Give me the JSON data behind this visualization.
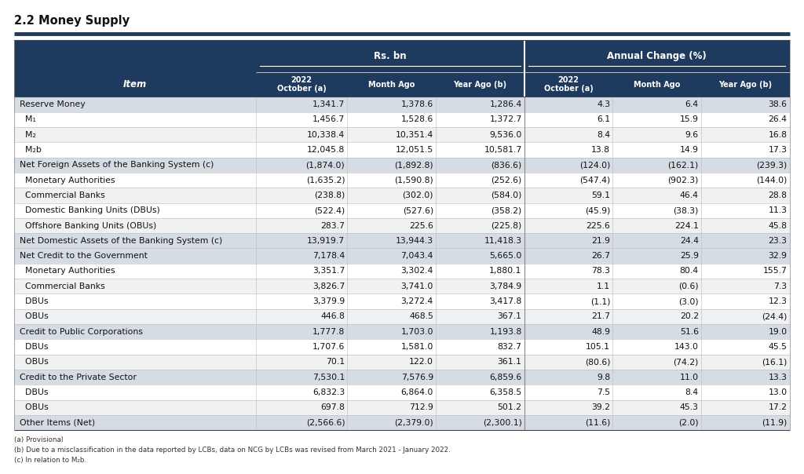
{
  "title": "2.2 Money Supply",
  "header_bg": "#1e3a5f",
  "header_text": "#ffffff",
  "row_bg_section": "#dde3ea",
  "row_bg_gray": "#e8ecf0",
  "row_bg_white": "#ffffff",
  "row_bg_light": "#f2f4f6",
  "col_groups": [
    "Rs. bn",
    "Annual Change (%)"
  ],
  "col_headers": [
    "2022\nOctober (a)",
    "Month Ago",
    "Year Ago (b)",
    "2022\nOctober (a)",
    "Month Ago",
    "Year Ago (b)"
  ],
  "item_col": "Item",
  "rows": [
    {
      "item": "Reserve Money",
      "type": "bold_section",
      "vals": [
        "1,341.7",
        "1,378.6",
        "1,286.4",
        "4.3",
        "6.4",
        "38.6"
      ]
    },
    {
      "item": "  M₁",
      "type": "sub",
      "vals": [
        "1,456.7",
        "1,528.6",
        "1,372.7",
        "6.1",
        "15.9",
        "26.4"
      ]
    },
    {
      "item": "  M₂",
      "type": "sub",
      "vals": [
        "10,338.4",
        "10,351.4",
        "9,536.0",
        "8.4",
        "9.6",
        "16.8"
      ]
    },
    {
      "item": "  M₂b",
      "type": "sub",
      "vals": [
        "12,045.8",
        "12,051.5",
        "10,581.7",
        "13.8",
        "14.9",
        "17.3"
      ]
    },
    {
      "item": "Net Foreign Assets of the Banking System (c)",
      "type": "bold_section",
      "vals": [
        "(1,874.0)",
        "(1,892.8)",
        "(836.6)",
        "(124.0)",
        "(162.1)",
        "(239.3)"
      ]
    },
    {
      "item": "  Monetary Authorities",
      "type": "sub",
      "vals": [
        "(1,635.2)",
        "(1,590.8)",
        "(252.6)",
        "(547.4)",
        "(902.3)",
        "(144.0)"
      ]
    },
    {
      "item": "  Commercial Banks",
      "type": "sub",
      "vals": [
        "(238.8)",
        "(302.0)",
        "(584.0)",
        "59.1",
        "46.4",
        "28.8"
      ]
    },
    {
      "item": "  Domestic Banking Units (DBUs)",
      "type": "sub",
      "vals": [
        "(522.4)",
        "(527.6)",
        "(358.2)",
        "(45.9)",
        "(38.3)",
        "11.3"
      ]
    },
    {
      "item": "  Offshore Banking Units (OBUs)",
      "type": "sub",
      "vals": [
        "283.7",
        "225.6",
        "(225.8)",
        "225.6",
        "224.1",
        "45.8"
      ]
    },
    {
      "item": "Net Domestic Assets of the Banking System (c)",
      "type": "bold_section",
      "vals": [
        "13,919.7",
        "13,944.3",
        "11,418.3",
        "21.9",
        "24.4",
        "23.3"
      ]
    },
    {
      "item": "Net Credit to the Government",
      "type": "bold_section",
      "vals": [
        "7,178.4",
        "7,043.4",
        "5,665.0",
        "26.7",
        "25.9",
        "32.9"
      ]
    },
    {
      "item": "  Monetary Authorities",
      "type": "sub",
      "vals": [
        "3,351.7",
        "3,302.4",
        "1,880.1",
        "78.3",
        "80.4",
        "155.7"
      ]
    },
    {
      "item": "  Commercial Banks",
      "type": "sub",
      "vals": [
        "3,826.7",
        "3,741.0",
        "3,784.9",
        "1.1",
        "(0.6)",
        "7.3"
      ]
    },
    {
      "item": "  DBUs",
      "type": "sub",
      "vals": [
        "3,379.9",
        "3,272.4",
        "3,417.8",
        "(1.1)",
        "(3.0)",
        "12.3"
      ]
    },
    {
      "item": "  OBUs",
      "type": "sub",
      "vals": [
        "446.8",
        "468.5",
        "367.1",
        "21.7",
        "20.2",
        "(24.4)"
      ]
    },
    {
      "item": "Credit to Public Corporations",
      "type": "bold_section",
      "vals": [
        "1,777.8",
        "1,703.0",
        "1,193.8",
        "48.9",
        "51.6",
        "19.0"
      ]
    },
    {
      "item": "  DBUs",
      "type": "sub",
      "vals": [
        "1,707.6",
        "1,581.0",
        "832.7",
        "105.1",
        "143.0",
        "45.5"
      ]
    },
    {
      "item": "  OBUs",
      "type": "sub",
      "vals": [
        "70.1",
        "122.0",
        "361.1",
        "(80.6)",
        "(74.2)",
        "(16.1)"
      ]
    },
    {
      "item": "Credit to the Private Sector",
      "type": "bold_section",
      "vals": [
        "7,530.1",
        "7,576.9",
        "6,859.6",
        "9.8",
        "11.0",
        "13.3"
      ]
    },
    {
      "item": "  DBUs",
      "type": "sub",
      "vals": [
        "6,832.3",
        "6,864.0",
        "6,358.5",
        "7.5",
        "8.4",
        "13.0"
      ]
    },
    {
      "item": "  OBUs",
      "type": "sub",
      "vals": [
        "697.8",
        "712.9",
        "501.2",
        "39.2",
        "45.3",
        "17.2"
      ]
    },
    {
      "item": "Other Items (Net)",
      "type": "bold_section",
      "vals": [
        "(2,566.6)",
        "(2,379.0)",
        "(2,300.1)",
        "(11.6)",
        "(2.0)",
        "(11.9)"
      ]
    }
  ],
  "footnotes": [
    "(a) Provisional",
    "(b) Due to a misclassification in the data reported by LCBs, data on NCG by LCBs was revised from March 2021 - January 2022.",
    "(c) In relation to M₂b."
  ]
}
